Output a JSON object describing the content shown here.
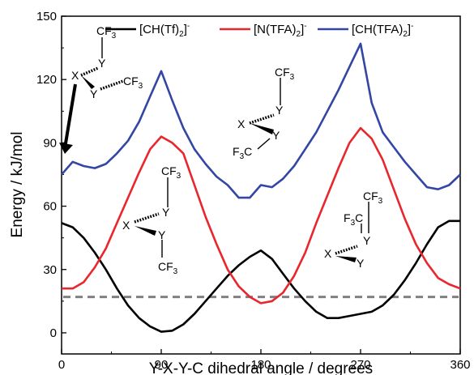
{
  "chart_data": {
    "type": "line",
    "xlabel": "Y-X-Y-C dihedral angle / degrees",
    "ylabel": "Energy / kJ/mol",
    "xlim": [
      0,
      360
    ],
    "ylim": [
      -10,
      150
    ],
    "x_ticks": [
      "0",
      "90",
      "180",
      "270",
      "360"
    ],
    "y_ticks": [
      "0",
      "30",
      "60",
      "90",
      "120",
      "150"
    ],
    "legend_position": "top",
    "reference_line": {
      "y": 17,
      "style": "dashed",
      "color": "#808080"
    },
    "series": [
      {
        "name": "[CH(Tf)2]-",
        "name_parts": [
          "[CH(Tf)",
          "2",
          "]",
          "-"
        ],
        "color": "#000000",
        "x": [
          0,
          10,
          20,
          30,
          40,
          50,
          60,
          70,
          80,
          90,
          100,
          110,
          120,
          130,
          140,
          150,
          160,
          170,
          180,
          190,
          200,
          210,
          220,
          230,
          240,
          250,
          260,
          270,
          280,
          290,
          300,
          310,
          320,
          330,
          340,
          350,
          360
        ],
        "y": [
          52,
          50,
          45,
          38,
          30,
          21,
          13,
          7,
          3,
          0.5,
          1,
          4,
          9,
          15,
          21,
          27,
          32,
          36,
          39,
          35,
          28,
          21,
          15,
          10,
          7,
          7,
          8,
          9,
          10,
          13,
          18,
          25,
          33,
          42,
          50,
          53,
          53
        ]
      },
      {
        "name": "[N(TFA)2]-",
        "name_parts": [
          "[N(TFA)",
          "2",
          "]",
          "-"
        ],
        "color": "#e8262c",
        "x": [
          0,
          10,
          20,
          30,
          40,
          50,
          60,
          70,
          80,
          90,
          100,
          110,
          120,
          130,
          140,
          150,
          160,
          170,
          180,
          190,
          200,
          210,
          220,
          230,
          240,
          250,
          260,
          270,
          280,
          290,
          300,
          310,
          320,
          330,
          340,
          350,
          360
        ],
        "y": [
          21,
          21,
          24,
          31,
          40,
          52,
          64,
          76,
          87,
          93,
          90,
          85,
          70,
          55,
          42,
          30,
          22,
          17,
          14,
          15,
          19,
          27,
          38,
          52,
          65,
          78,
          90,
          97,
          92,
          82,
          68,
          54,
          42,
          33,
          26,
          23,
          21
        ]
      },
      {
        "name": "[CH(TFA)2]-",
        "name_parts": [
          "[CH(TFA)",
          "2",
          "]",
          "-"
        ],
        "color": "#3346a3",
        "x": [
          0,
          10,
          20,
          30,
          40,
          50,
          60,
          70,
          80,
          90,
          100,
          110,
          120,
          130,
          140,
          150,
          160,
          170,
          180,
          190,
          200,
          210,
          220,
          230,
          240,
          250,
          260,
          270,
          280,
          290,
          300,
          310,
          320,
          330,
          340,
          350,
          360
        ],
        "y": [
          75,
          81,
          79,
          78,
          80,
          85,
          91,
          100,
          112,
          124,
          110,
          97,
          87,
          80,
          74,
          70,
          64,
          64,
          70,
          69,
          73,
          79,
          87,
          95,
          105,
          115,
          126,
          137,
          109,
          95,
          88,
          81,
          75,
          69,
          68,
          70,
          75
        ]
      }
    ]
  },
  "molecules": [
    {
      "x_label": "X",
      "y_labels": [
        "Y",
        "Y"
      ],
      "cf3_labels": [
        [
          "CF",
          "3"
        ],
        [
          "CF",
          "3"
        ]
      ]
    },
    {
      "x_label": "X",
      "y_labels": [
        "Y",
        "Y"
      ],
      "cf3_labels": [
        [
          "CF",
          "3"
        ],
        [
          "F",
          "3",
          "C"
        ]
      ]
    },
    {
      "x_label": "X",
      "y_labels": [
        "Y",
        "Y"
      ],
      "cf3_labels": [
        [
          "CF",
          "3"
        ],
        [
          "CF",
          "3"
        ]
      ]
    },
    {
      "x_label": "X",
      "y_labels": [
        "Y",
        "Y"
      ],
      "cf3_labels": [
        [
          "CF",
          "3"
        ],
        [
          "F",
          "3",
          "C"
        ]
      ]
    }
  ]
}
